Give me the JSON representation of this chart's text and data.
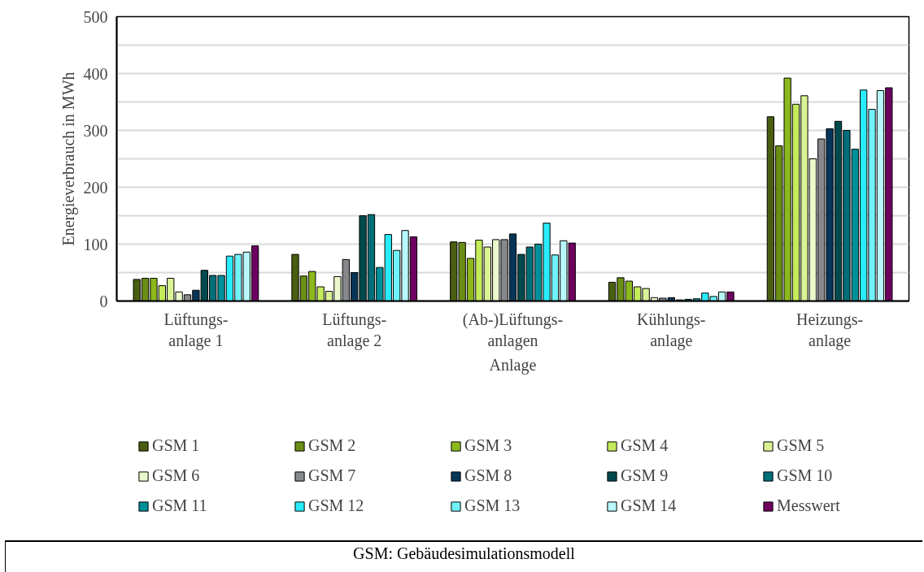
{
  "chart_data": {
    "type": "bar",
    "xlabel": "Anlage",
    "ylabel": "Energieverbrauch in MWh",
    "categories": [
      "Lüftungs-\nanlage 1",
      "Lüftungs-\nanlage 2",
      "(Ab-)Lüftungs-\nanlagen",
      "Kühlungs-\nanlage",
      "Heizungs-\nanlage"
    ],
    "ylim": [
      0,
      500
    ],
    "yticks": [
      0,
      {
        "value": 50,
        "label": null
      },
      100,
      {
        "value": 150,
        "label": null
      },
      200,
      {
        "value": 250,
        "label": null
      },
      300,
      {
        "value": 350,
        "label": null
      },
      400,
      {
        "value": 450,
        "label": null
      },
      500
    ],
    "grid": "y",
    "legend": "bottom",
    "series": [
      {
        "name": "GSM 1",
        "color": "#4a5e12",
        "values": [
          38,
          82,
          104,
          33,
          324
        ]
      },
      {
        "name": "GSM 2",
        "color": "#6b8e14",
        "values": [
          40,
          44,
          103,
          41,
          273
        ]
      },
      {
        "name": "GSM 3",
        "color": "#8cb81c",
        "values": [
          40,
          52,
          75,
          35,
          392
        ]
      },
      {
        "name": "GSM 4",
        "color": "#c4ec5a",
        "values": [
          27,
          25,
          107,
          25,
          346
        ]
      },
      {
        "name": "GSM 5",
        "color": "#daf296",
        "values": [
          40,
          17,
          95,
          22,
          361
        ]
      },
      {
        "name": "GSM 6",
        "color": "#eaf8cc",
        "values": [
          16,
          43,
          108,
          6,
          250
        ]
      },
      {
        "name": "GSM 7",
        "color": "#86888c",
        "values": [
          11,
          73,
          108,
          5,
          285
        ]
      },
      {
        "name": "GSM 8",
        "color": "#063558",
        "values": [
          19,
          50,
          118,
          6,
          303
        ]
      },
      {
        "name": "GSM 9",
        "color": "#004a4e",
        "values": [
          54,
          150,
          82,
          2,
          316
        ]
      },
      {
        "name": "GSM 10",
        "color": "#006e78",
        "values": [
          45,
          152,
          95,
          3,
          300
        ]
      },
      {
        "name": "GSM 11",
        "color": "#00909a",
        "values": [
          45,
          59,
          100,
          4,
          267
        ]
      },
      {
        "name": "GSM 12",
        "color": "#28ecfc",
        "values": [
          79,
          117,
          137,
          14,
          371
        ]
      },
      {
        "name": "GSM 13",
        "color": "#70f2fc",
        "values": [
          82,
          89,
          81,
          8,
          337
        ]
      },
      {
        "name": "GSM 14",
        "color": "#b8f8fc",
        "values": [
          86,
          124,
          106,
          16,
          370
        ]
      },
      {
        "name": "Messwert",
        "color": "#6e0060",
        "values": [
          97,
          113,
          102,
          16,
          375
        ]
      }
    ],
    "annotations": [
      "GSM: Gebäudesimulationsmodell"
    ]
  }
}
